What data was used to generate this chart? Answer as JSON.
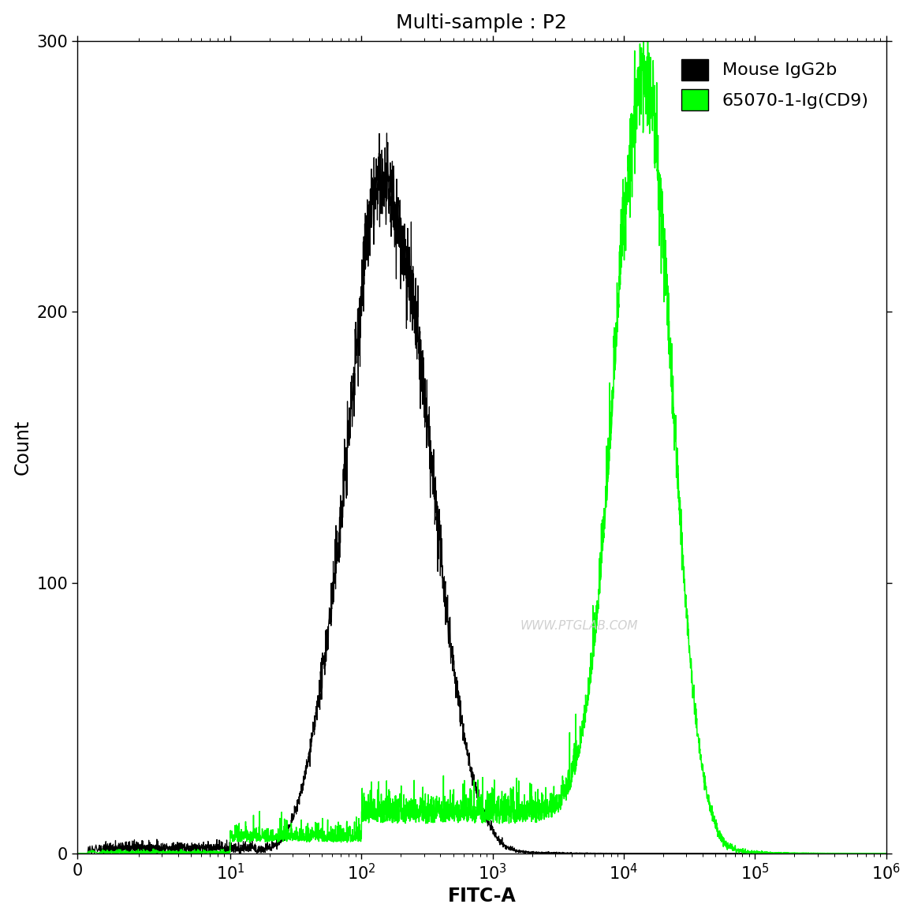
{
  "title": "Multi-sample : P2",
  "xlabel": "FITC-A",
  "ylabel": "Count",
  "ylim": [
    0,
    300
  ],
  "yticks": [
    0,
    100,
    200,
    300
  ],
  "x_max": 1000000,
  "legend_labels": [
    "Mouse IgG2b",
    "65070-1-Ig(CD9)"
  ],
  "legend_colors": [
    "#000000",
    "#00ff00"
  ],
  "watermark": "WWW.PTGLAB.COM",
  "background_color": "#ffffff",
  "title_fontsize": 18,
  "label_fontsize": 17,
  "tick_fontsize": 15
}
